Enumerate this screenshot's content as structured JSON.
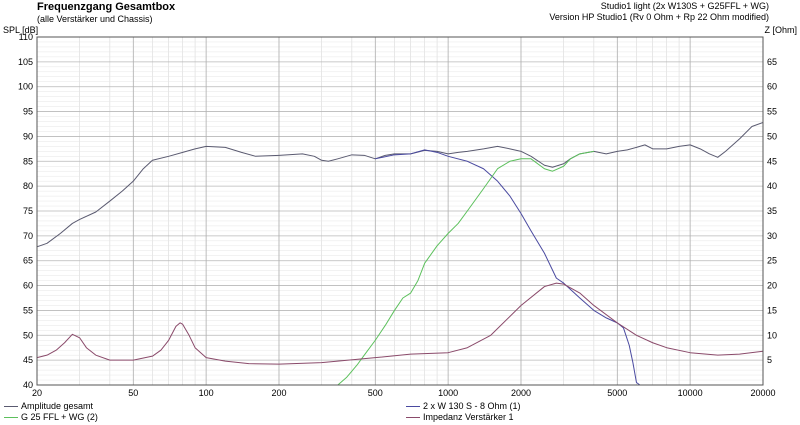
{
  "header": {
    "title": "Frequenzgang Gesamtbox",
    "subtitle": "(alle Verstärker und Chassis)",
    "right_title": "Studio1 light (2x W130S + G25FFL + WG)",
    "right_subtitle": "Version HP Studio1 (Rv 0 Ohm + Rp 22 Ohm modified)"
  },
  "chart_data": {
    "type": "line",
    "title": "Frequenzgang Gesamtbox",
    "xscale": "log",
    "xlim": [
      20,
      20000
    ],
    "x_ticks": [
      20,
      50,
      100,
      200,
      500,
      1000,
      2000,
      5000,
      10000,
      20000
    ],
    "ylabel": "SPL [dB]",
    "ylim": [
      40,
      110
    ],
    "y_ticks": [
      40,
      45,
      50,
      55,
      60,
      65,
      70,
      75,
      80,
      85,
      90,
      95,
      100,
      105,
      110
    ],
    "y2label": "Z [Ohm]",
    "y2lim": [
      0,
      70
    ],
    "y2_ticks": [
      5,
      10,
      15,
      20,
      25,
      30,
      35,
      40,
      45,
      50,
      55,
      60,
      65
    ],
    "grid": true,
    "legend_position": "bottom",
    "series": [
      {
        "name": "Amplitude gesamt",
        "axis": "left",
        "color": "#5a5a70",
        "points": [
          [
            20,
            67.8
          ],
          [
            22,
            68.5
          ],
          [
            25,
            70.5
          ],
          [
            28,
            72.5
          ],
          [
            30,
            73.3
          ],
          [
            35,
            74.8
          ],
          [
            40,
            77
          ],
          [
            45,
            79
          ],
          [
            50,
            81
          ],
          [
            55,
            83.5
          ],
          [
            60,
            85.2
          ],
          [
            70,
            86
          ],
          [
            80,
            86.8
          ],
          [
            90,
            87.5
          ],
          [
            100,
            88
          ],
          [
            120,
            87.8
          ],
          [
            140,
            86.8
          ],
          [
            160,
            86
          ],
          [
            200,
            86.2
          ],
          [
            250,
            86.5
          ],
          [
            280,
            86
          ],
          [
            300,
            85.2
          ],
          [
            320,
            85
          ],
          [
            350,
            85.5
          ],
          [
            400,
            86.3
          ],
          [
            450,
            86.2
          ],
          [
            500,
            85.5
          ],
          [
            550,
            86.2
          ],
          [
            600,
            86.5
          ],
          [
            700,
            86.5
          ],
          [
            800,
            87.2
          ],
          [
            900,
            87
          ],
          [
            1000,
            86.5
          ],
          [
            1100,
            86.8
          ],
          [
            1200,
            87
          ],
          [
            1400,
            87.5
          ],
          [
            1600,
            88
          ],
          [
            1800,
            87.5
          ],
          [
            2000,
            87
          ],
          [
            2200,
            86
          ],
          [
            2500,
            84.2
          ],
          [
            2700,
            83.8
          ],
          [
            3000,
            84.5
          ],
          [
            3200,
            85.5
          ],
          [
            3500,
            86.5
          ],
          [
            4000,
            87
          ],
          [
            4500,
            86.5
          ],
          [
            5000,
            87
          ],
          [
            5500,
            87.3
          ],
          [
            6000,
            87.8
          ],
          [
            6500,
            88.3
          ],
          [
            7000,
            87.5
          ],
          [
            8000,
            87.5
          ],
          [
            9000,
            88
          ],
          [
            10000,
            88.3
          ],
          [
            11000,
            87.5
          ],
          [
            12000,
            86.5
          ],
          [
            13000,
            85.8
          ],
          [
            14000,
            87
          ],
          [
            16000,
            89.5
          ],
          [
            18000,
            92
          ],
          [
            20000,
            92.8
          ]
        ]
      },
      {
        "name": "2 x W 130 S - 8 Ohm (1)",
        "axis": "left",
        "color": "#4a4aa0",
        "points": [
          [
            500,
            85.5
          ],
          [
            600,
            86.3
          ],
          [
            700,
            86.5
          ],
          [
            800,
            87.3
          ],
          [
            900,
            86.8
          ],
          [
            1000,
            86
          ],
          [
            1200,
            85
          ],
          [
            1400,
            83.5
          ],
          [
            1600,
            81
          ],
          [
            1800,
            78
          ],
          [
            2000,
            74.5
          ],
          [
            2200,
            71
          ],
          [
            2500,
            66.5
          ],
          [
            2800,
            61.5
          ],
          [
            3000,
            60.5
          ],
          [
            3500,
            57.5
          ],
          [
            4000,
            55
          ],
          [
            4500,
            53.5
          ],
          [
            5000,
            52.5
          ],
          [
            5300,
            51.5
          ],
          [
            5600,
            48
          ],
          [
            5800,
            44.5
          ],
          [
            6000,
            40.5
          ],
          [
            6200,
            40
          ],
          [
            8000,
            40
          ],
          [
            10000,
            40
          ],
          [
            20000,
            40
          ]
        ]
      },
      {
        "name": "G 25 FFL + WG (2)",
        "axis": "left",
        "color": "#5cc05c",
        "points": [
          [
            20,
            40
          ],
          [
            100,
            40
          ],
          [
            200,
            40
          ],
          [
            300,
            40
          ],
          [
            350,
            40
          ],
          [
            380,
            41.5
          ],
          [
            420,
            44
          ],
          [
            450,
            46
          ],
          [
            500,
            49
          ],
          [
            550,
            52
          ],
          [
            600,
            55
          ],
          [
            650,
            57.5
          ],
          [
            700,
            58.5
          ],
          [
            750,
            61
          ],
          [
            800,
            64.5
          ],
          [
            900,
            68
          ],
          [
            1000,
            70.5
          ],
          [
            1100,
            72.5
          ],
          [
            1200,
            75
          ],
          [
            1400,
            79.5
          ],
          [
            1600,
            83.5
          ],
          [
            1800,
            85
          ],
          [
            2000,
            85.5
          ],
          [
            2200,
            85.5
          ],
          [
            2500,
            83.5
          ],
          [
            2700,
            83
          ],
          [
            3000,
            84
          ],
          [
            3200,
            85.5
          ],
          [
            3500,
            86.5
          ],
          [
            4000,
            87
          ]
        ]
      },
      {
        "name": "Impedanz Verstärker 1",
        "axis": "right",
        "color": "#8a4a6a",
        "points": [
          [
            20,
            5.5
          ],
          [
            22,
            6
          ],
          [
            24,
            7
          ],
          [
            26,
            8.5
          ],
          [
            28,
            10.2
          ],
          [
            30,
            9.5
          ],
          [
            32,
            7.5
          ],
          [
            35,
            6
          ],
          [
            40,
            5
          ],
          [
            50,
            5
          ],
          [
            60,
            5.8
          ],
          [
            65,
            7
          ],
          [
            70,
            9
          ],
          [
            75,
            11.8
          ],
          [
            78,
            12.5
          ],
          [
            80,
            12.2
          ],
          [
            85,
            10
          ],
          [
            90,
            7.5
          ],
          [
            100,
            5.5
          ],
          [
            120,
            4.8
          ],
          [
            150,
            4.3
          ],
          [
            200,
            4.2
          ],
          [
            300,
            4.5
          ],
          [
            500,
            5.5
          ],
          [
            700,
            6.2
          ],
          [
            1000,
            6.5
          ],
          [
            1200,
            7.5
          ],
          [
            1500,
            10
          ],
          [
            2000,
            16
          ],
          [
            2500,
            19.8
          ],
          [
            2800,
            20.5
          ],
          [
            3000,
            20.3
          ],
          [
            3500,
            18.5
          ],
          [
            4000,
            16
          ],
          [
            5000,
            12.5
          ],
          [
            6000,
            10
          ],
          [
            7000,
            8.5
          ],
          [
            8000,
            7.5
          ],
          [
            10000,
            6.5
          ],
          [
            13000,
            6
          ],
          [
            16000,
            6.2
          ],
          [
            20000,
            6.8
          ]
        ]
      }
    ]
  }
}
